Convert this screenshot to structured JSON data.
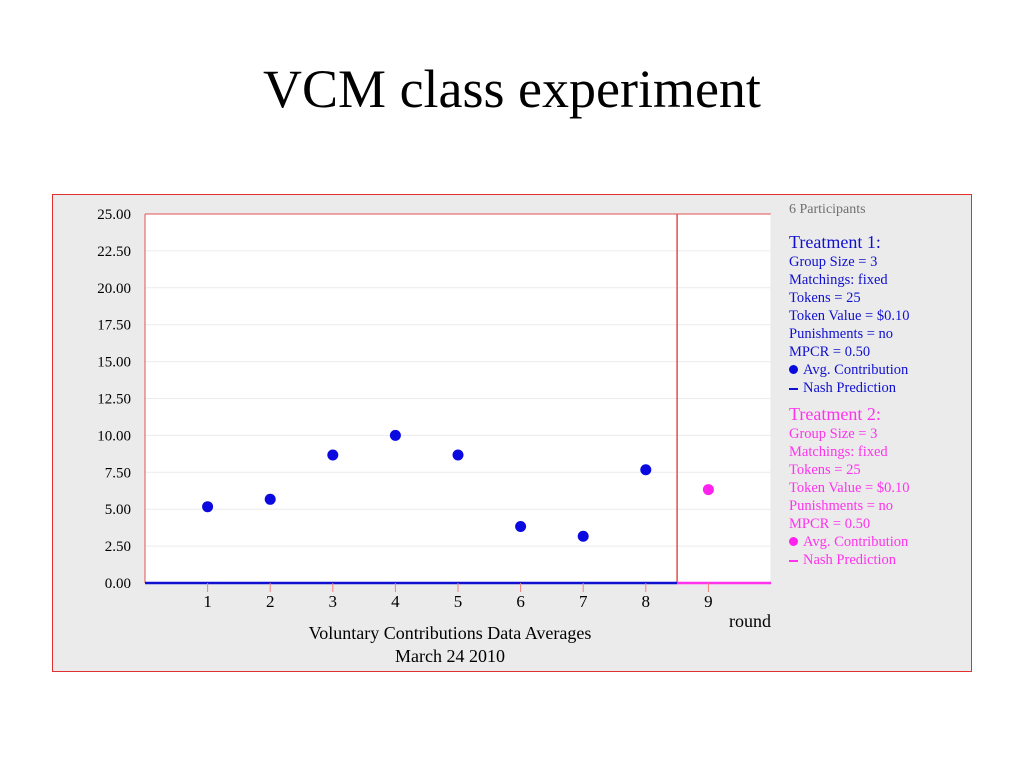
{
  "slide": {
    "title": "VCM class experiment"
  },
  "chart_data": {
    "type": "scatter",
    "xlabel": "round",
    "caption_line1": "Voluntary Contributions Data Averages",
    "caption_line2": "March 24  2010",
    "ylim": [
      0,
      25
    ],
    "yticks": [
      "0.00",
      "2.50",
      "5.00",
      "7.50",
      "10.00",
      "12.50",
      "15.00",
      "17.50",
      "20.00",
      "22.50",
      "25.00"
    ],
    "xticks": [
      "1",
      "2",
      "3",
      "4",
      "5",
      "6",
      "7",
      "8",
      "9"
    ],
    "treatment_split_after_round": 8.5,
    "series": [
      {
        "name": "Treatment 1 Avg. Contribution",
        "color": "#0a0ae0",
        "x": [
          1,
          2,
          3,
          4,
          5,
          6,
          7,
          8
        ],
        "values": [
          5.17,
          5.67,
          8.67,
          10.0,
          8.67,
          3.83,
          3.17,
          7.67
        ]
      },
      {
        "name": "Treatment 2 Avg. Contribution",
        "color": "#ff22ee",
        "x": [
          9
        ],
        "values": [
          6.33
        ]
      }
    ],
    "nash_predictions": [
      {
        "name": "Treatment 1 Nash Prediction",
        "value": 0,
        "from_round": 0,
        "to_round": 8.5,
        "color": "#1010d0"
      },
      {
        "name": "Treatment 2 Nash Prediction",
        "value": 0,
        "from_round": 8.5,
        "to_round": 10,
        "color": "#ff33ee"
      }
    ]
  },
  "legend": {
    "participants": "6 Participants",
    "treatment1": {
      "title": "Treatment 1:",
      "lines": [
        "Group Size = 3",
        "Matchings: fixed",
        "Tokens = 25",
        "Token Value = $0.10",
        "Punishments = no",
        "MPCR = 0.50"
      ],
      "avg_label": "Avg. Contribution",
      "nash_label": "Nash Prediction",
      "color": "#1010d0"
    },
    "treatment2": {
      "title": "Treatment 2:",
      "lines": [
        "Group Size = 3",
        "Matchings: fixed",
        "Tokens = 25",
        "Token Value = $0.10",
        "Punishments = no",
        "MPCR = 0.50"
      ],
      "avg_label": "Avg. Contribution",
      "nash_label": "Nash Prediction",
      "color": "#ff33ee"
    }
  }
}
